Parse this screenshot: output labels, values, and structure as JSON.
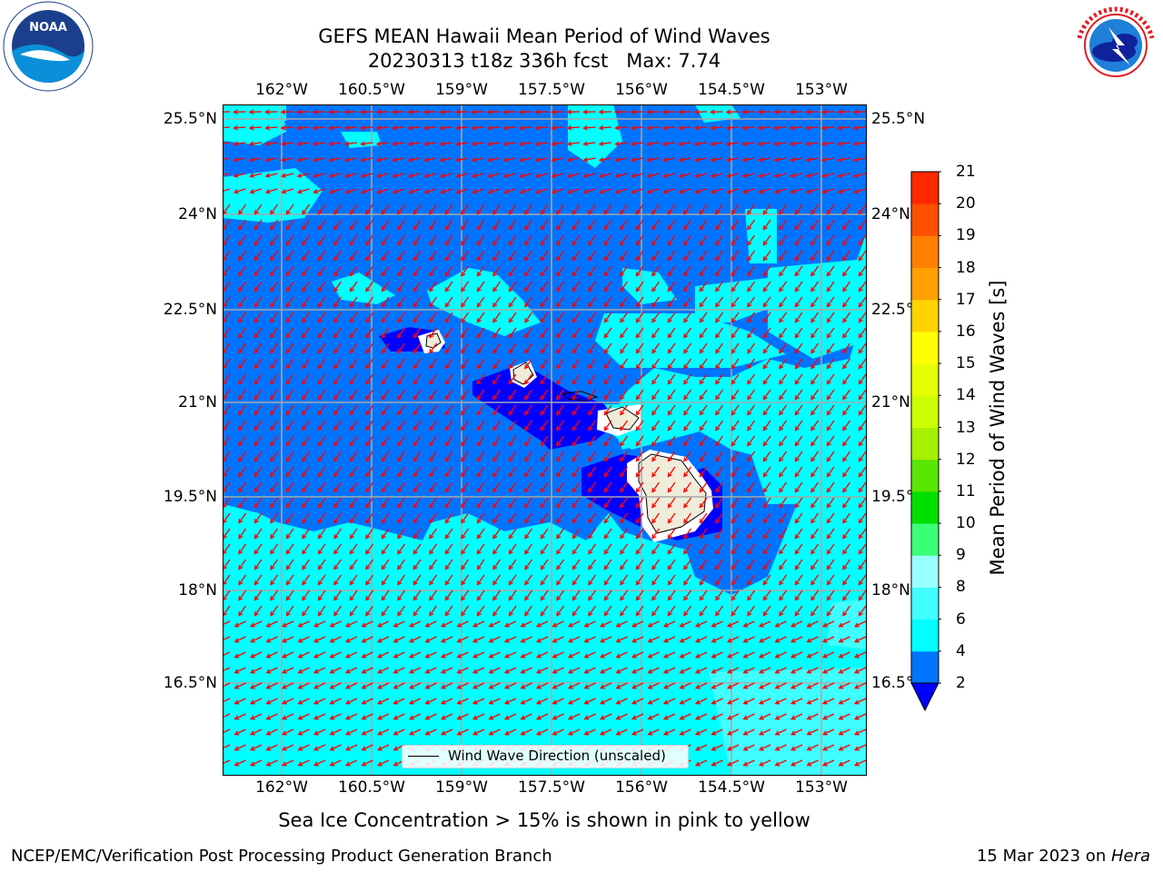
{
  "header": {
    "title_line1": "GEFS MEAN Hawaii Mean Period of Wind Waves",
    "title_line2": "20230313 t18z 336h fcst   Max: 7.74"
  },
  "logos": {
    "left": "NOAA",
    "left_ring_text": "NATIONAL OCEANIC AND ATMOSPHERIC ADMINISTRATION · U.S. DEPARTMENT OF COMMERCE",
    "right_ring_text": "NATIONAL WEATHER SERVICE"
  },
  "map": {
    "lon_ticks": [
      "162°W",
      "160.5°W",
      "159°W",
      "157.5°W",
      "156°W",
      "154.5°W",
      "153°W"
    ],
    "lat_ticks": [
      "25.5°N",
      "24°N",
      "22.5°N",
      "21°N",
      "19.5°N",
      "18°N",
      "16.5°N"
    ],
    "legend_label": "Wind Wave Direction (unscaled)",
    "arrow_color": "#ff0000"
  },
  "colorbar": {
    "title": "Mean Period of Wind Waves [s]",
    "levels": [
      "2",
      "4",
      "6",
      "8",
      "9",
      "10",
      "11",
      "12",
      "13",
      "14",
      "15",
      "16",
      "17",
      "18",
      "19",
      "20",
      "21"
    ],
    "colors": [
      "#0074ff",
      "#00ffff",
      "#40ffff",
      "#99ffff",
      "#3cff78",
      "#00e000",
      "#5ae600",
      "#a6f000",
      "#ccff00",
      "#e6ff00",
      "#ffff00",
      "#ffd200",
      "#ffa000",
      "#ff8000",
      "#ff5000",
      "#ff2800"
    ],
    "under_color": "#0000ff"
  },
  "footer": {
    "note": "Sea Ice Concentration > 15% is shown in pink to yellow",
    "credit_left": "NCEP/EMC/Verification Post Processing Product Generation Branch",
    "credit_date": "15 Mar 2023 on ",
    "credit_machine": "Hera"
  }
}
